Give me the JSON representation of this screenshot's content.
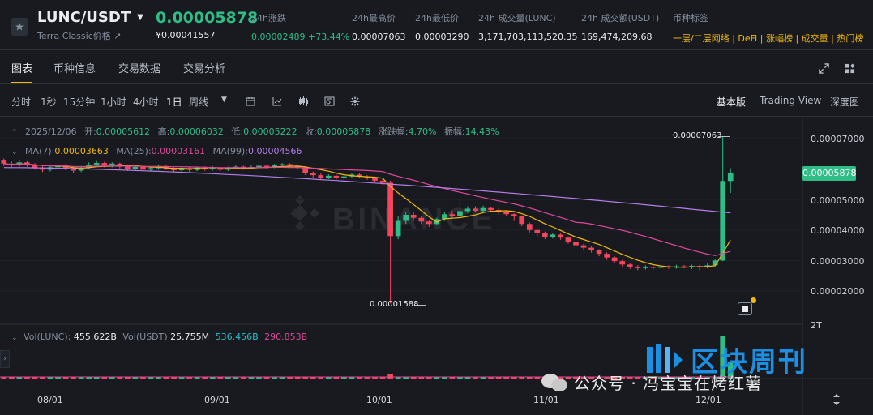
{
  "header": {
    "pair": "LUNC/USDT",
    "subtitle": "Terra Classic价格",
    "last_price": "0.00005878",
    "last_price_cny": "¥0.00041557",
    "stats": [
      {
        "label": "24h涨跌",
        "value": "0.00002489 +73.44%"
      },
      {
        "label": "24h最高价",
        "value": "0.00007063"
      },
      {
        "label": "24h最低价",
        "value": "0.00003290"
      },
      {
        "label": "24h 成交量(LUNC)",
        "value": "3,171,703,113,520.35"
      },
      {
        "label": "24h 成交额(USDT)",
        "value": "169,474,209.68"
      }
    ],
    "tags_label": "币种标签",
    "tags": [
      "一层/二层网络",
      "DeFi",
      "涨幅榜",
      "成交量",
      "热门榜"
    ]
  },
  "tabs": [
    "图表",
    "币种信息",
    "交易数据",
    "交易分析"
  ],
  "toolbar": {
    "intervals": [
      "分时",
      "1秒",
      "15分钟",
      "1小时",
      "4小时",
      "1日",
      "周线"
    ],
    "active_interval": "1日",
    "views": [
      "基本版",
      "Trading View",
      "深度图"
    ],
    "active_view": "基本版"
  },
  "ohlc": {
    "date": "2025/12/06",
    "open_label": "开:",
    "open": "0.00005612",
    "high_label": "高:",
    "high": "0.00006032",
    "low_label": "低:",
    "low": "0.00005222",
    "close_label": "收:",
    "close": "0.00005878",
    "chg_label": "涨跌幅:",
    "chg": "4.70%",
    "amp_label": "振幅:",
    "amp": "14.43%"
  },
  "ma": {
    "ma7_label": "MA(7):",
    "ma7": "0.00003663",
    "ma25_label": "MA(25):",
    "ma25": "0.00003161",
    "ma99_label": "MA(99):",
    "ma99": "0.00004566"
  },
  "vol": {
    "lunc_label": "Vol(LUNC):",
    "lunc": "455.622B",
    "usdt_label": "Vol(USDT)",
    "usdt": "25.755M",
    "v1": "536.456B",
    "v2": "290.853B",
    "axis_top": "2T"
  },
  "markers": {
    "high": "0.00007063",
    "low": "0.00001588"
  },
  "current_price_tag": "0.00005878",
  "watermark": "BINANCE",
  "overlay": {
    "logo_text": "区块周刊",
    "wechat_text": "公众号 · 冯宝宝在烤红薯"
  },
  "chart_data": {
    "type": "candlestick",
    "y_ticks": [
      "0.00007000",
      "0.00006000",
      "0.00005000",
      "0.00004000",
      "0.00003000",
      "0.00002000"
    ],
    "x_ticks": [
      "08/01",
      "09/01",
      "10/01",
      "11/01",
      "12/01"
    ],
    "ylim": [
      1.5e-05,
      7.5e-05
    ],
    "series": [
      {
        "name": "MA(7)",
        "color": "#f0b90b"
      },
      {
        "name": "MA(25)",
        "color": "#e0489a"
      },
      {
        "name": "MA(99)",
        "color": "#b57ee8"
      }
    ],
    "candles": [
      [
        6.28e-05,
        6.18e-05,
        6.35e-05,
        6.1e-05
      ],
      [
        6.18e-05,
        6.12e-05,
        6.25e-05,
        6.05e-05
      ],
      [
        6.12e-05,
        6.22e-05,
        6.28e-05,
        6.06e-05
      ],
      [
        6.22e-05,
        6.15e-05,
        6.26e-05,
        6.08e-05
      ],
      [
        6.15e-05,
        6.05e-05,
        6.19e-05,
        5.98e-05
      ],
      [
        6.05e-05,
        5.98e-05,
        6.11e-05,
        5.9e-05
      ],
      [
        5.98e-05,
        6.06e-05,
        6.12e-05,
        5.92e-05
      ],
      [
        6.06e-05,
        6.12e-05,
        6.18e-05,
        6e-05
      ],
      [
        6.12e-05,
        6.03e-05,
        6.16e-05,
        5.96e-05
      ],
      [
        6.03e-05,
        5.95e-05,
        6.08e-05,
        5.88e-05
      ],
      [
        5.95e-05,
        6.04e-05,
        6.1e-05,
        5.9e-05
      ],
      [
        6.04e-05,
        6.15e-05,
        6.22e-05,
        6e-05
      ],
      [
        6.15e-05,
        6.2e-05,
        6.26e-05,
        6.1e-05
      ],
      [
        6.2e-05,
        6.12e-05,
        6.24e-05,
        6.06e-05
      ],
      [
        6.12e-05,
        6.18e-05,
        6.22e-05,
        6.06e-05
      ],
      [
        6.18e-05,
        6.08e-05,
        6.21e-05,
        6e-05
      ],
      [
        6.08e-05,
        6e-05,
        6.12e-05,
        5.94e-05
      ],
      [
        6e-05,
        6.07e-05,
        6.13e-05,
        5.95e-05
      ],
      [
        6.07e-05,
        5.98e-05,
        6.11e-05,
        5.92e-05
      ],
      [
        5.98e-05,
        6.03e-05,
        6.09e-05,
        5.94e-05
      ],
      [
        6.03e-05,
        6.1e-05,
        6.15e-05,
        5.98e-05
      ],
      [
        6.1e-05,
        6.02e-05,
        6.14e-05,
        5.97e-05
      ],
      [
        6.02e-05,
        5.96e-05,
        6.06e-05,
        5.9e-05
      ],
      [
        5.96e-05,
        6.03e-05,
        6.08e-05,
        5.92e-05
      ],
      [
        6.03e-05,
        5.97e-05,
        6.06e-05,
        5.91e-05
      ],
      [
        5.97e-05,
        6.05e-05,
        6.09e-05,
        5.93e-05
      ],
      [
        6.05e-05,
        5.99e-05,
        6.09e-05,
        5.94e-05
      ],
      [
        5.99e-05,
        6.04e-05,
        6.1e-05,
        5.95e-05
      ],
      [
        6.04e-05,
        5.98e-05,
        6.07e-05,
        5.93e-05
      ],
      [
        5.98e-05,
        6.03e-05,
        6.08e-05,
        5.94e-05
      ],
      [
        6.03e-05,
        6.08e-05,
        6.12e-05,
        6e-05
      ],
      [
        6.08e-05,
        6.02e-05,
        6.11e-05,
        5.98e-05
      ],
      [
        6.02e-05,
        6.07e-05,
        6.12e-05,
        5.99e-05
      ],
      [
        6.07e-05,
        6.11e-05,
        6.16e-05,
        6.03e-05
      ],
      [
        6.11e-05,
        6.06e-05,
        6.14e-05,
        6.01e-05
      ],
      [
        6.06e-05,
        6.12e-05,
        6.17e-05,
        6.03e-05
      ],
      [
        6.12e-05,
        6.16e-05,
        6.2e-05,
        6.08e-05
      ],
      [
        6.16e-05,
        6.11e-05,
        6.19e-05,
        6.06e-05
      ],
      [
        6.11e-05,
        6.06e-05,
        6.14e-05,
        6e-05
      ],
      [
        6.06e-05,
        5.88e-05,
        6.09e-05,
        5.8e-05
      ],
      [
        5.88e-05,
        5.8e-05,
        5.92e-05,
        5.72e-05
      ],
      [
        5.8e-05,
        5.72e-05,
        5.86e-05,
        5.66e-05
      ],
      [
        5.72e-05,
        5.78e-05,
        5.83e-05,
        5.67e-05
      ],
      [
        5.78e-05,
        5.7e-05,
        5.82e-05,
        5.65e-05
      ],
      [
        5.7e-05,
        5.76e-05,
        5.8e-05,
        5.65e-05
      ],
      [
        5.76e-05,
        5.82e-05,
        5.87e-05,
        5.72e-05
      ],
      [
        5.82e-05,
        5.76e-05,
        5.86e-05,
        5.71e-05
      ],
      [
        5.76e-05,
        5.7e-05,
        5.8e-05,
        5.65e-05
      ],
      [
        5.7e-05,
        5.62e-05,
        5.74e-05,
        5.58e-05
      ],
      [
        5.62e-05,
        5.55e-05,
        5.66e-05,
        5.48e-05
      ],
      [
        5.55e-05,
        3.8e-05,
        5.62e-05,
        1.59e-05
      ],
      [
        3.8e-05,
        4.3e-05,
        4.45e-05,
        3.7e-05
      ],
      [
        4.3e-05,
        4.5e-05,
        4.6e-05,
        4.2e-05
      ],
      [
        4.5e-05,
        4.4e-05,
        4.58e-05,
        4.3e-05
      ],
      [
        4.4e-05,
        4.28e-05,
        4.46e-05,
        4.2e-05
      ],
      [
        4.28e-05,
        4.2e-05,
        4.32e-05,
        4.1e-05
      ],
      [
        4.2e-05,
        4.36e-05,
        4.41e-05,
        4.15e-05
      ],
      [
        4.36e-05,
        4.52e-05,
        4.6e-05,
        4.3e-05
      ],
      [
        4.52e-05,
        4.46e-05,
        4.62e-05,
        4.38e-05
      ],
      [
        4.46e-05,
        4.62e-05,
        5.02e-05,
        4.4e-05
      ],
      [
        4.62e-05,
        4.7e-05,
        4.78e-05,
        4.55e-05
      ],
      [
        4.7e-05,
        4.63e-05,
        4.78e-05,
        4.58e-05
      ],
      [
        4.63e-05,
        4.72e-05,
        4.8e-05,
        4.58e-05
      ],
      [
        4.72e-05,
        4.66e-05,
        4.77e-05,
        4.6e-05
      ],
      [
        4.66e-05,
        4.58e-05,
        4.7e-05,
        4.52e-05
      ],
      [
        4.58e-05,
        4.52e-05,
        4.62e-05,
        4.46e-05
      ],
      [
        4.52e-05,
        4.45e-05,
        4.56e-05,
        4.3e-05
      ],
      [
        4.45e-05,
        4.2e-05,
        4.48e-05,
        4.12e-05
      ],
      [
        4.2e-05,
        4e-05,
        4.25e-05,
        3.92e-05
      ],
      [
        4e-05,
        3.9e-05,
        4.05e-05,
        3.8e-05
      ],
      [
        3.9e-05,
        3.78e-05,
        3.95e-05,
        3.7e-05
      ],
      [
        3.78e-05,
        3.85e-05,
        3.9e-05,
        3.72e-05
      ],
      [
        3.85e-05,
        3.75e-05,
        3.89e-05,
        3.68e-05
      ],
      [
        3.75e-05,
        3.62e-05,
        3.78e-05,
        3.55e-05
      ],
      [
        3.62e-05,
        3.5e-05,
        3.66e-05,
        3.44e-05
      ],
      [
        3.5e-05,
        3.42e-05,
        3.55e-05,
        3.35e-05
      ],
      [
        3.42e-05,
        3.33e-05,
        3.46e-05,
        3.26e-05
      ],
      [
        3.33e-05,
        3.22e-05,
        3.37e-05,
        3.14e-05
      ],
      [
        3.22e-05,
        3.1e-05,
        3.27e-05,
        3.02e-05
      ],
      [
        3.1e-05,
        2.98e-05,
        3.14e-05,
        2.9e-05
      ],
      [
        2.98e-05,
        2.87e-05,
        3.02e-05,
        2.8e-05
      ],
      [
        2.87e-05,
        2.8e-05,
        2.92e-05,
        2.72e-05
      ],
      [
        2.8e-05,
        2.75e-05,
        2.85e-05,
        2.68e-05
      ],
      [
        2.75e-05,
        2.79e-05,
        2.84e-05,
        2.7e-05
      ],
      [
        2.79e-05,
        2.76e-05,
        2.83e-05,
        2.7e-05
      ],
      [
        2.76e-05,
        2.8e-05,
        2.85e-05,
        2.72e-05
      ],
      [
        2.8e-05,
        2.77e-05,
        2.84e-05,
        2.72e-05
      ],
      [
        2.77e-05,
        2.81e-05,
        2.86e-05,
        2.73e-05
      ],
      [
        2.81e-05,
        2.78e-05,
        2.85e-05,
        2.74e-05
      ],
      [
        2.78e-05,
        2.82e-05,
        2.86e-05,
        2.72e-05
      ],
      [
        2.82e-05,
        2.79e-05,
        2.86e-05,
        2.68e-05
      ],
      [
        2.79e-05,
        2.84e-05,
        2.9e-05,
        2.74e-05
      ],
      [
        2.84e-05,
        3e-05,
        3.05e-05,
        2.8e-05
      ],
      [
        3e-05,
        5.61e-05,
        7.06e-05,
        2.98e-05
      ],
      [
        5.61e-05,
        5.88e-05,
        6.03e-05,
        5.22e-05
      ]
    ]
  }
}
